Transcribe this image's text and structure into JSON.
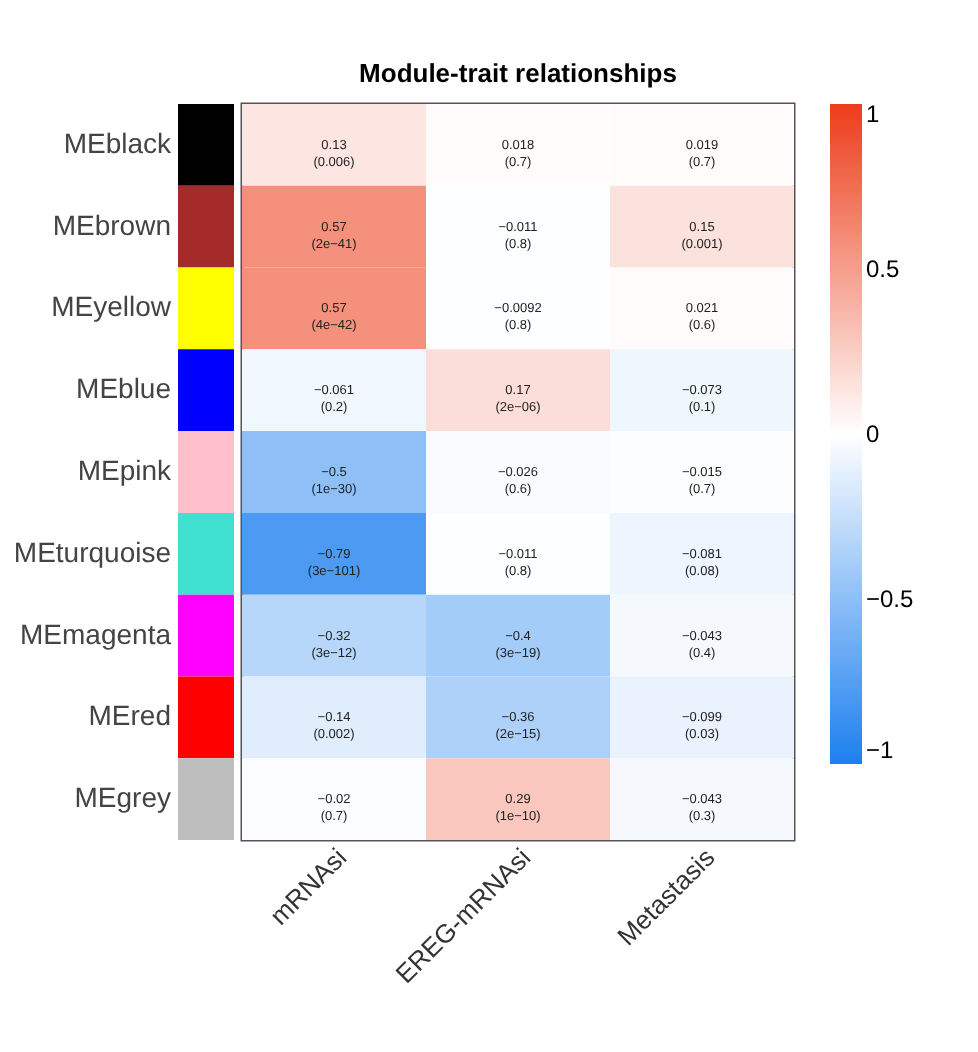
{
  "chart_data": {
    "type": "heatmap",
    "title": "Module-trait relationships",
    "categories": [
      "mRNAsi",
      "EREG-mRNAsi",
      "Metastasis"
    ],
    "y_categories": [
      "MEblack",
      "MEbrown",
      "MEyellow",
      "MEblue",
      "MEpink",
      "MEturquoise",
      "MEmagenta",
      "MEred",
      "MEgrey"
    ],
    "colors": [
      "#000000",
      "#a52a2a",
      "#ffff00",
      "#0000ff",
      "#ffc0cb",
      "#40e0d0",
      "#ff00ff",
      "#ff0000",
      "#bebebe"
    ],
    "cells": [
      [
        0.13,
        0.018,
        0.019
      ],
      [
        0.57,
        -0.011,
        0.15
      ],
      [
        0.57,
        -0.0092,
        0.021
      ],
      [
        -0.061,
        0.17,
        -0.073
      ],
      [
        -0.5,
        -0.026,
        -0.015
      ],
      [
        -0.79,
        -0.011,
        -0.081
      ],
      [
        -0.32,
        -0.4,
        -0.043
      ],
      [
        -0.14,
        -0.36,
        -0.099
      ],
      [
        -0.02,
        0.29,
        -0.043
      ]
    ],
    "cell_labels": [
      [
        "0.13\n(0.006)",
        "0.018\n(0.7)",
        "0.019\n(0.7)"
      ],
      [
        "0.57\n(2e−41)",
        "−0.011\n(0.8)",
        "0.15\n(0.001)"
      ],
      [
        "0.57\n(4e−42)",
        "−0.0092\n(0.8)",
        "0.021\n(0.6)"
      ],
      [
        "−0.061\n(0.2)",
        "0.17\n(2e−06)",
        "−0.073\n(0.1)"
      ],
      [
        "−0.5\n(1e−30)",
        "−0.026\n(0.6)",
        "−0.015\n(0.7)"
      ],
      [
        "−0.79\n(3e−101)",
        "−0.011\n(0.8)",
        "−0.081\n(0.08)"
      ],
      [
        "−0.32\n(3e−12)",
        "−0.4\n(3e−19)",
        "−0.043\n(0.4)"
      ],
      [
        "−0.14\n(0.002)",
        "−0.36\n(2e−15)",
        "−0.099\n(0.03)"
      ],
      [
        "−0.02\n(0.7)",
        "0.29\n(1e−10)",
        "−0.043\n(0.3)"
      ]
    ],
    "clim": [
      -1,
      1
    ],
    "cticks": [
      -1,
      -0.5,
      0,
      0.5,
      1
    ]
  }
}
